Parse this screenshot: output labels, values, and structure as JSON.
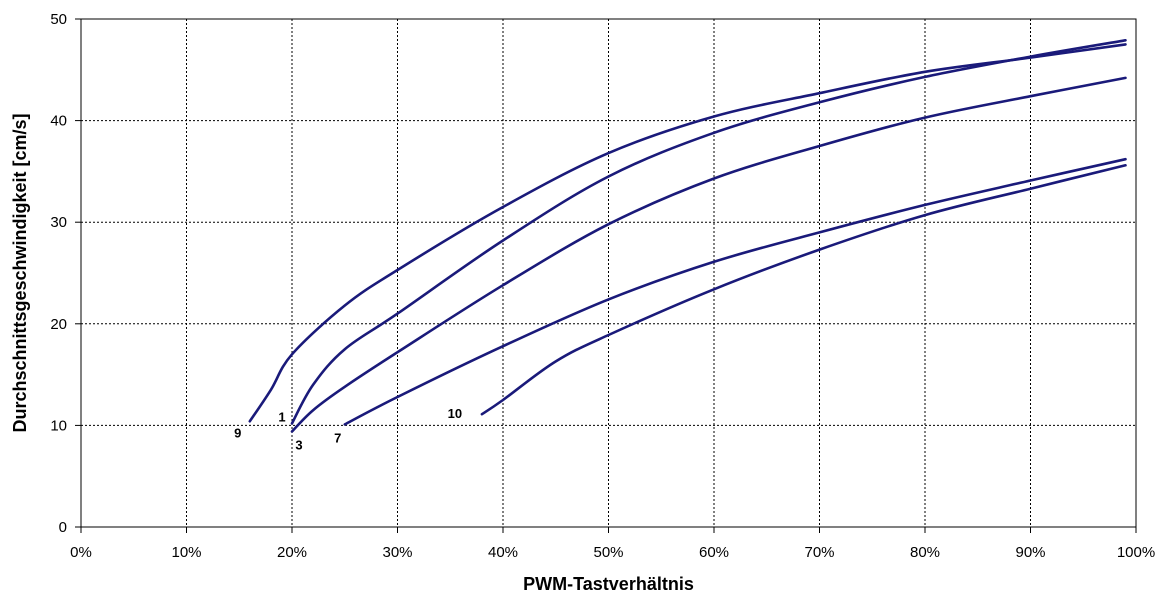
{
  "chart_data": {
    "type": "line",
    "title": "",
    "xlabel": "PWM-Tastverhältnis",
    "ylabel": "Durchschnittsgeschwindigkeit [cm/s]",
    "xlim": [
      0,
      100
    ],
    "ylim": [
      0,
      50
    ],
    "x_ticks": [
      "0%",
      "10%",
      "20%",
      "30%",
      "40%",
      "50%",
      "60%",
      "70%",
      "80%",
      "90%",
      "100%"
    ],
    "y_ticks": [
      "0",
      "10",
      "20",
      "30",
      "40",
      "50"
    ],
    "grid": true,
    "legend": "none",
    "line_color": "#1a1a7a",
    "series": [
      {
        "name": "9",
        "points": [
          [
            16,
            10.4
          ],
          [
            18,
            13.5
          ],
          [
            20,
            17
          ],
          [
            25,
            21.8
          ],
          [
            30,
            25.3
          ],
          [
            40,
            31.5
          ],
          [
            50,
            36.8
          ],
          [
            60,
            40.4
          ],
          [
            70,
            42.7
          ],
          [
            80,
            44.8
          ],
          [
            90,
            46.2
          ],
          [
            99,
            47.5
          ]
        ]
      },
      {
        "name": "1",
        "points": [
          [
            20,
            10.2
          ],
          [
            22,
            14
          ],
          [
            25,
            17.5
          ],
          [
            30,
            21
          ],
          [
            40,
            28.2
          ],
          [
            50,
            34.5
          ],
          [
            60,
            38.8
          ],
          [
            70,
            41.8
          ],
          [
            80,
            44.3
          ],
          [
            90,
            46.3
          ],
          [
            99,
            47.9
          ]
        ]
      },
      {
        "name": "3",
        "points": [
          [
            20,
            9.4
          ],
          [
            22,
            11.5
          ],
          [
            25,
            13.8
          ],
          [
            30,
            17.2
          ],
          [
            40,
            23.8
          ],
          [
            50,
            29.8
          ],
          [
            60,
            34.3
          ],
          [
            70,
            37.5
          ],
          [
            80,
            40.3
          ],
          [
            90,
            42.4
          ],
          [
            99,
            44.2
          ]
        ]
      },
      {
        "name": "7",
        "points": [
          [
            25,
            10.1
          ],
          [
            30,
            12.8
          ],
          [
            40,
            17.8
          ],
          [
            50,
            22.4
          ],
          [
            60,
            26.1
          ],
          [
            70,
            29
          ],
          [
            80,
            31.7
          ],
          [
            90,
            34.1
          ],
          [
            99,
            36.2
          ]
        ]
      },
      {
        "name": "10",
        "points": [
          [
            38,
            11.1
          ],
          [
            40,
            12.5
          ],
          [
            45,
            16.3
          ],
          [
            50,
            18.9
          ],
          [
            60,
            23.4
          ],
          [
            70,
            27.3
          ],
          [
            80,
            30.7
          ],
          [
            90,
            33.3
          ],
          [
            99,
            35.6
          ]
        ]
      }
    ]
  }
}
